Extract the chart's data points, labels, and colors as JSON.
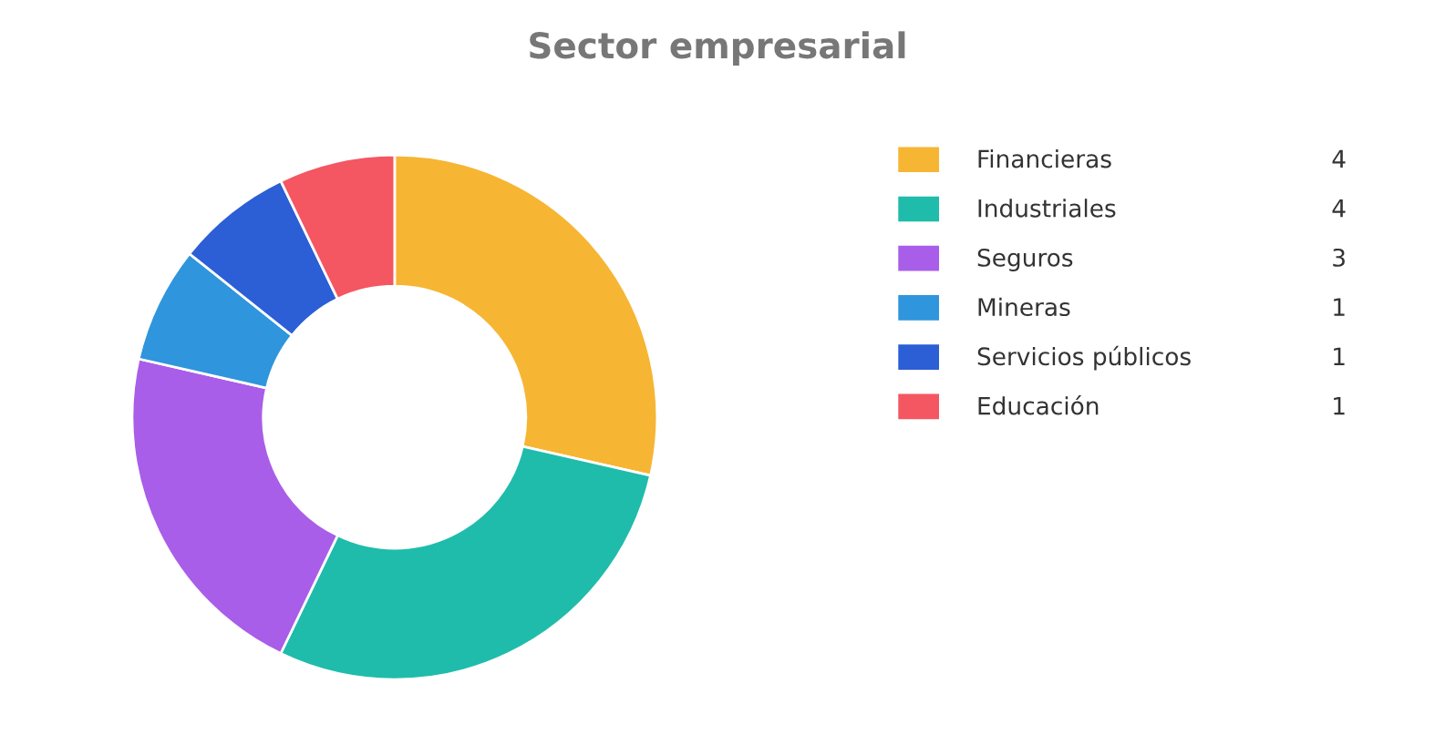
{
  "chart_data": {
    "type": "donut",
    "title": "Sector empresarial",
    "categories": [
      "Financieras",
      "Industriales",
      "Seguros",
      "Mineras",
      "Servicios públicos",
      "Educación"
    ],
    "values": [
      4,
      4,
      3,
      1,
      1,
      1
    ],
    "colors": [
      "#f6b533",
      "#1fbcab",
      "#a85ee8",
      "#2f95dc",
      "#2c5ed6",
      "#f45662"
    ],
    "data_labels": true,
    "legend": "right"
  }
}
